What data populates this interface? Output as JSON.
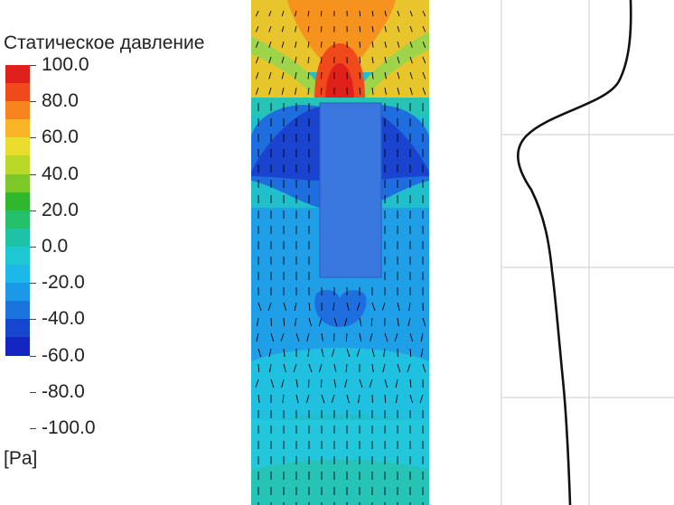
{
  "legend": {
    "title": "Статическое давление",
    "unit": "[Pa]",
    "ticks": [
      "100.0",
      "80.0",
      "60.0",
      "40.0",
      "20.0",
      "0.0",
      "-20.0",
      "-40.0",
      "-60.0",
      "-80.0",
      "-100.0"
    ],
    "bands": [
      "#e0201a",
      "#f04a1c",
      "#f7841f",
      "#f9b525",
      "#e9dc2c",
      "#b9d828",
      "#7cc829",
      "#2fb82e",
      "#25c06c",
      "#1dc2a4",
      "#1ec8d2",
      "#1cb8ea",
      "#1c98e8",
      "#1b74dd",
      "#1746cf",
      "#1525c2"
    ]
  },
  "contour_colors": {
    "red": "#e82a10",
    "orange": "#f6921e",
    "yellow": "#e7c62b",
    "teal": "#26c4b6",
    "cyan": "#23c7dc",
    "light_blue": "#1f9fe8",
    "mid_blue": "#1f6ee0",
    "dark_blue": "#1a43d0",
    "body": "#3a78e0"
  },
  "profile": {
    "line_color": "#111111",
    "grid_color": "#cccccc"
  }
}
